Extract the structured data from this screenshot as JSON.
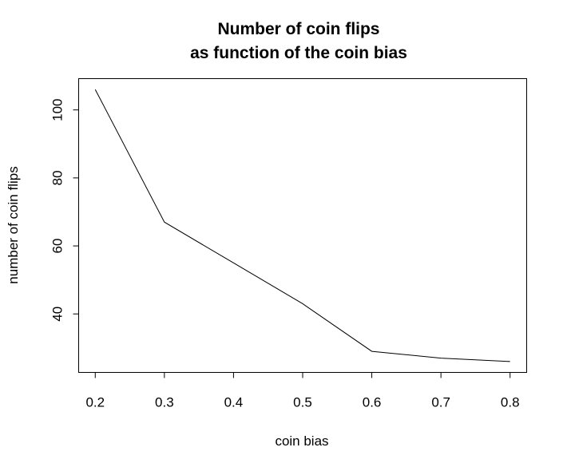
{
  "chart_data": {
    "type": "line",
    "title_line1": "Number of coin flips",
    "title_line2": "as function of the coin bias",
    "xlabel": "coin bias",
    "ylabel": "number of coin flips",
    "x": [
      0.2,
      0.3,
      0.4,
      0.5,
      0.6,
      0.7,
      0.8
    ],
    "series": [
      {
        "values": [
          106,
          67,
          55,
          43,
          29,
          27,
          26
        ]
      }
    ],
    "xticks": [
      "0.2",
      "0.3",
      "0.4",
      "0.5",
      "0.6",
      "0.7",
      "0.8"
    ],
    "yticks": [
      "40",
      "60",
      "80",
      "100"
    ],
    "xlim": [
      0.176,
      0.824
    ],
    "ylim": [
      22.8,
      109.2
    ],
    "line_color": "#000000",
    "grid": false,
    "legend": "none"
  }
}
